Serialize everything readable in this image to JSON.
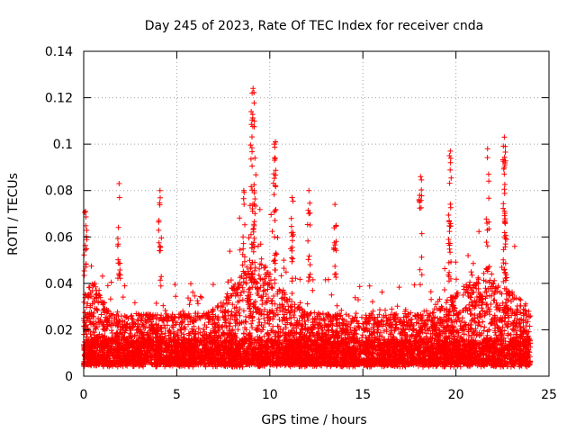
{
  "chart_data": {
    "type": "scatter",
    "title": "Day 245 of 2023, Rate Of TEC Index for receiver cnda",
    "xlabel": "GPS time / hours",
    "ylabel": "ROTI / TECUs",
    "xlim": [
      0,
      25
    ],
    "ylim": [
      0,
      0.14
    ],
    "xticks": [
      0,
      5,
      10,
      15,
      20,
      25
    ],
    "xtick_labels": [
      "0",
      "5",
      "10",
      "15",
      "20",
      "25"
    ],
    "yticks": [
      0,
      0.02,
      0.04,
      0.06,
      0.08,
      0.1,
      0.12,
      0.14
    ],
    "ytick_labels": [
      "0",
      "0.02",
      "0.04",
      "0.06",
      "0.08",
      "0.1",
      "0.12",
      "0.14"
    ],
    "grid": true,
    "marker": "+",
    "series": [
      {
        "name": "ROTI",
        "color": "#ff0000",
        "x_range": [
          0,
          24
        ],
        "typical_range": [
          0.005,
          0.045
        ],
        "notable_points": [
          {
            "x": 9.1,
            "y": 0.124
          },
          {
            "x": 9.05,
            "y": 0.122
          },
          {
            "x": 9.0,
            "y": 0.114
          },
          {
            "x": 10.3,
            "y": 0.101
          },
          {
            "x": 10.25,
            "y": 0.1
          },
          {
            "x": 9.2,
            "y": 0.094
          },
          {
            "x": 22.6,
            "y": 0.103
          },
          {
            "x": 22.65,
            "y": 0.099
          },
          {
            "x": 21.7,
            "y": 0.098
          },
          {
            "x": 19.7,
            "y": 0.097
          },
          {
            "x": 19.65,
            "y": 0.095
          },
          {
            "x": 22.6,
            "y": 0.09
          },
          {
            "x": 1.9,
            "y": 0.083
          },
          {
            "x": 4.1,
            "y": 0.08
          },
          {
            "x": 18.1,
            "y": 0.086
          },
          {
            "x": 0.1,
            "y": 0.071
          },
          {
            "x": 12.1,
            "y": 0.08
          },
          {
            "x": 11.2,
            "y": 0.077
          },
          {
            "x": 13.5,
            "y": 0.074
          },
          {
            "x": 8.6,
            "y": 0.08
          }
        ]
      }
    ]
  }
}
